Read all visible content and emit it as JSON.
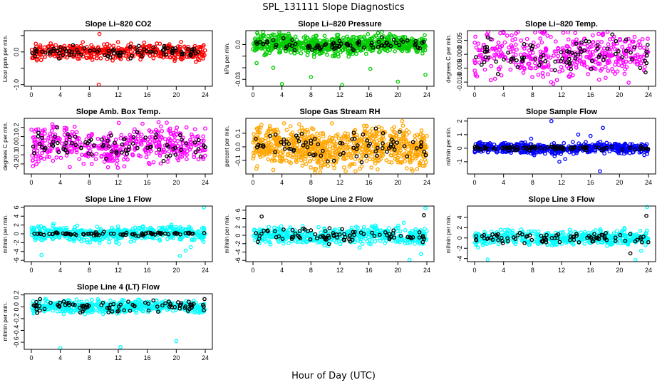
{
  "figure": {
    "title": "SPL_131111  Slope Diagnostics",
    "xlabel": "Hour of Day (UTC)"
  },
  "chart_data": [
    {
      "type": "scatter",
      "title": "Slope Li–820 CO2",
      "ylabel": "Licor ppm per min.",
      "color": "#ff0000",
      "xlim": [
        0,
        24
      ],
      "ylim": [
        -1.05,
        0.65
      ],
      "yticks": [
        -1.0,
        -0.5,
        0.0,
        0.5
      ],
      "ytick_labels": [
        "-1.0",
        "",
        "0.0",
        ""
      ],
      "xticks": [
        0,
        4,
        8,
        12,
        16,
        20,
        24
      ],
      "series": [
        {
          "name": "",
          "color": "#ff0000",
          "n": 420,
          "center": 0.0,
          "spread": 0.12,
          "outliers": [
            [
              9.4,
              0.55
            ],
            [
              9.3,
              -1.0
            ],
            [
              7.1,
              0.3
            ]
          ]
        },
        {
          "name": "",
          "color": "#000000",
          "n": 90,
          "center": 0.0,
          "spread": 0.08,
          "outliers": []
        }
      ]
    },
    {
      "type": "scatter",
      "title": "Slope Li–820 Pressure",
      "ylabel": "kPa per min.",
      "color": "#00cc00",
      "xlim": [
        0,
        24
      ],
      "ylim": [
        -0.036,
        0.012
      ],
      "yticks": [
        0.0,
        -0.01,
        -0.02,
        -0.03
      ],
      "ytick_labels": [
        "0.0",
        "",
        "",
        "-0.03"
      ],
      "xticks": [
        0,
        4,
        8,
        12,
        16,
        20,
        24
      ],
      "series": [
        {
          "name": "",
          "color": "#00cc00",
          "n": 700,
          "center": 0.0,
          "spread": 0.004,
          "outliers": [
            [
              4.0,
              -0.034
            ],
            [
              8.0,
              -0.028
            ],
            [
              12.3,
              -0.035
            ],
            [
              16.2,
              -0.021
            ],
            [
              20.0,
              -0.032
            ],
            [
              23.8,
              -0.026
            ],
            [
              2.8,
              -0.02
            ],
            [
              0.5,
              -0.016
            ]
          ]
        },
        {
          "name": "",
          "color": "#000000",
          "n": 80,
          "center": 0.0,
          "spread": 0.003,
          "outliers": []
        }
      ]
    },
    {
      "type": "scatter",
      "title": "Slope Li–820 Temp.",
      "ylabel": "degrees C per min.",
      "color": "#ff00ff",
      "xlim": [
        0,
        24
      ],
      "ylim": [
        -0.0115,
        0.0085
      ],
      "yticks": [
        0.005,
        0.0,
        -0.005,
        -0.01
      ],
      "ytick_labels": [
        "0.005",
        "0.000",
        "-0.005",
        "-0.010"
      ],
      "xticks": [
        0,
        4,
        8,
        12,
        16,
        20,
        24
      ],
      "series": [
        {
          "name": "",
          "color": "#ff00ff",
          "n": 420,
          "center": 0.0,
          "spread": 0.0042,
          "outliers": []
        },
        {
          "name": "",
          "color": "#000000",
          "n": 85,
          "center": 0.0,
          "spread": 0.003,
          "outliers": []
        }
      ]
    },
    {
      "type": "scatter",
      "title": "Slope Amb. Box Temp.",
      "ylabel": "degrees C per min.",
      "color": "#ff00ff",
      "xlim": [
        0,
        24
      ],
      "ylim": [
        -0.31,
        0.3
      ],
      "yticks": [
        -0.2,
        -0.1,
        0.0,
        0.1,
        0.2
      ],
      "ytick_labels": [
        "-0.2",
        "-0.1",
        "0.0",
        "0.1",
        "0.2"
      ],
      "xticks": [
        0,
        4,
        8,
        12,
        16,
        20,
        24
      ],
      "series": [
        {
          "name": "",
          "color": "#ff00ff",
          "n": 450,
          "center": 0.0,
          "spread": 0.1,
          "outliers": []
        },
        {
          "name": "",
          "color": "#000000",
          "n": 85,
          "center": 0.0,
          "spread": 0.08,
          "outliers": []
        }
      ]
    },
    {
      "type": "scatter",
      "title": "Slope Gas Stream RH",
      "ylabel": "percent per min.",
      "color": "#ffa500",
      "xlim": [
        0,
        24
      ],
      "ylim": [
        -0.2,
        0.21
      ],
      "yticks": [
        -0.1,
        0.0,
        0.1
      ],
      "ytick_labels": [
        "-0.1",
        "0.0",
        "0.1"
      ],
      "xticks": [
        0,
        4,
        8,
        12,
        16,
        20,
        24
      ],
      "series": [
        {
          "name": "",
          "color": "#ffa500",
          "n": 800,
          "center": 0.0,
          "spread": 0.07,
          "outliers": [
            [
              2.8,
              -0.17
            ],
            [
              12.8,
              -0.18
            ],
            [
              20.6,
              0.19
            ]
          ]
        },
        {
          "name": "",
          "color": "#000000",
          "n": 80,
          "center": 0.0,
          "spread": 0.06,
          "outliers": []
        }
      ]
    },
    {
      "type": "scatter",
      "title": "Slope Sample Flow",
      "ylabel": "ml/min per min.",
      "color": "#0000ff",
      "xlim": [
        0,
        24
      ],
      "ylim": [
        -1.9,
        2.2
      ],
      "yticks": [
        -1,
        0,
        1,
        2
      ],
      "ytick_labels": [
        "-1",
        "0",
        "1",
        "2"
      ],
      "xticks": [
        0,
        4,
        8,
        12,
        16,
        20,
        24
      ],
      "series": [
        {
          "name": "",
          "color": "#0000ff",
          "n": 520,
          "center": 0.0,
          "spread": 0.2,
          "outliers": [
            [
              10.6,
              2.0
            ],
            [
              17.7,
              1.5
            ],
            [
              17.3,
              -1.7
            ],
            [
              11.7,
              -1.0
            ],
            [
              12.5,
              -0.8
            ],
            [
              14.3,
              1.0
            ],
            [
              16.0,
              0.9
            ],
            [
              7.8,
              0.7
            ]
          ]
        },
        {
          "name": "",
          "color": "#000000",
          "n": 85,
          "center": 0.0,
          "spread": 0.08,
          "outliers": []
        }
      ]
    },
    {
      "type": "scatter",
      "title": "Slope Line 1 Flow",
      "ylabel": "ml/min per min.",
      "color": "#00ffff",
      "xlim": [
        0,
        24
      ],
      "ylim": [
        -6.3,
        6.3
      ],
      "yticks": [
        -6,
        -4,
        -2,
        0,
        2,
        4,
        6
      ],
      "ytick_labels": [
        "-6",
        "-4",
        "-2",
        "0",
        "2",
        "4",
        "6"
      ],
      "xticks": [
        0,
        4,
        8,
        12,
        16,
        20,
        24
      ],
      "series": [
        {
          "name": "",
          "color": "#00ffff",
          "n": 480,
          "center": 0.0,
          "spread": 0.8,
          "outliers": [
            [
              1.4,
              -4.8
            ],
            [
              23.8,
              6.0
            ],
            [
              21.3,
              -3.8
            ],
            [
              20.5,
              -5.0
            ],
            [
              22.0,
              -3.0
            ]
          ]
        },
        {
          "name": "",
          "color": "#000000",
          "n": 85,
          "center": 0.0,
          "spread": 0.2,
          "outliers": []
        }
      ]
    },
    {
      "type": "scatter",
      "title": "Slope Line 2 Flow",
      "ylabel": "ml/min per min.",
      "color": "#00ffff",
      "xlim": [
        0,
        24
      ],
      "ylim": [
        -6.3,
        7.0
      ],
      "yticks": [
        -6,
        -4,
        -2,
        0,
        2,
        4,
        6
      ],
      "ytick_labels": [
        "-6",
        "-4",
        "-2",
        "0",
        "2",
        "4",
        "6"
      ],
      "xticks": [
        0,
        4,
        8,
        12,
        16,
        20,
        24
      ],
      "series": [
        {
          "name": "",
          "color": "#00ffff",
          "n": 480,
          "center": 0.0,
          "spread": 1.0,
          "outliers": [
            [
              23.8,
              6.5
            ],
            [
              21.6,
              -5.9
            ],
            [
              20.8,
              3.0
            ],
            [
              23.2,
              -4.5
            ]
          ]
        },
        {
          "name": "",
          "color": "#000000",
          "n": 85,
          "center": 0.0,
          "spread": 0.8,
          "outliers": [
            [
              1.2,
              4.5
            ],
            [
              23.6,
              4.8
            ]
          ]
        }
      ]
    },
    {
      "type": "scatter",
      "title": "Slope Line 3 Flow",
      "ylabel": "ml/min per min.",
      "color": "#00ffff",
      "xlim": [
        0,
        24
      ],
      "ylim": [
        -4.6,
        6.2
      ],
      "yticks": [
        -4,
        -2,
        0,
        2,
        4
      ],
      "ytick_labels": [
        "-4",
        "-2",
        "0",
        "2",
        "4"
      ],
      "xticks": [
        0,
        4,
        8,
        12,
        16,
        20,
        24
      ],
      "series": [
        {
          "name": "",
          "color": "#00ffff",
          "n": 480,
          "center": 0.0,
          "spread": 0.7,
          "outliers": [
            [
              23.8,
              6.0
            ],
            [
              22.2,
              -4.3
            ],
            [
              1.8,
              -4.2
            ],
            [
              23.0,
              -2.5
            ]
          ]
        },
        {
          "name": "",
          "color": "#000000",
          "n": 85,
          "center": 0.0,
          "spread": 0.5,
          "outliers": [
            [
              23.7,
              4.3
            ],
            [
              21.5,
              -3.0
            ]
          ]
        }
      ]
    },
    {
      "type": "scatter",
      "title": "Slope Line 4 (LT) Flow",
      "ylabel": "ml/min per min.",
      "color": "#00ffff",
      "xlim": [
        0,
        24
      ],
      "ylim": [
        -0.72,
        0.22
      ],
      "yticks": [
        -0.6,
        -0.4,
        -0.2,
        0.0,
        0.2
      ],
      "ytick_labels": [
        "-0.6",
        "-0.4",
        "-0.2",
        "0.0",
        "0.2"
      ],
      "xticks": [
        0,
        4,
        8,
        12,
        16,
        20,
        24
      ],
      "series": [
        {
          "name": "",
          "color": "#00ffff",
          "n": 480,
          "center": 0.0,
          "spread": 0.05,
          "outliers": [
            [
              4.0,
              -0.7
            ],
            [
              12.3,
              -0.68
            ],
            [
              20.0,
              -0.58
            ]
          ]
        },
        {
          "name": "",
          "color": "#000000",
          "n": 85,
          "center": 0.0,
          "spread": 0.05,
          "outliers": [
            [
              1.2,
              0.13
            ],
            [
              23.9,
              0.13
            ]
          ]
        }
      ]
    }
  ]
}
